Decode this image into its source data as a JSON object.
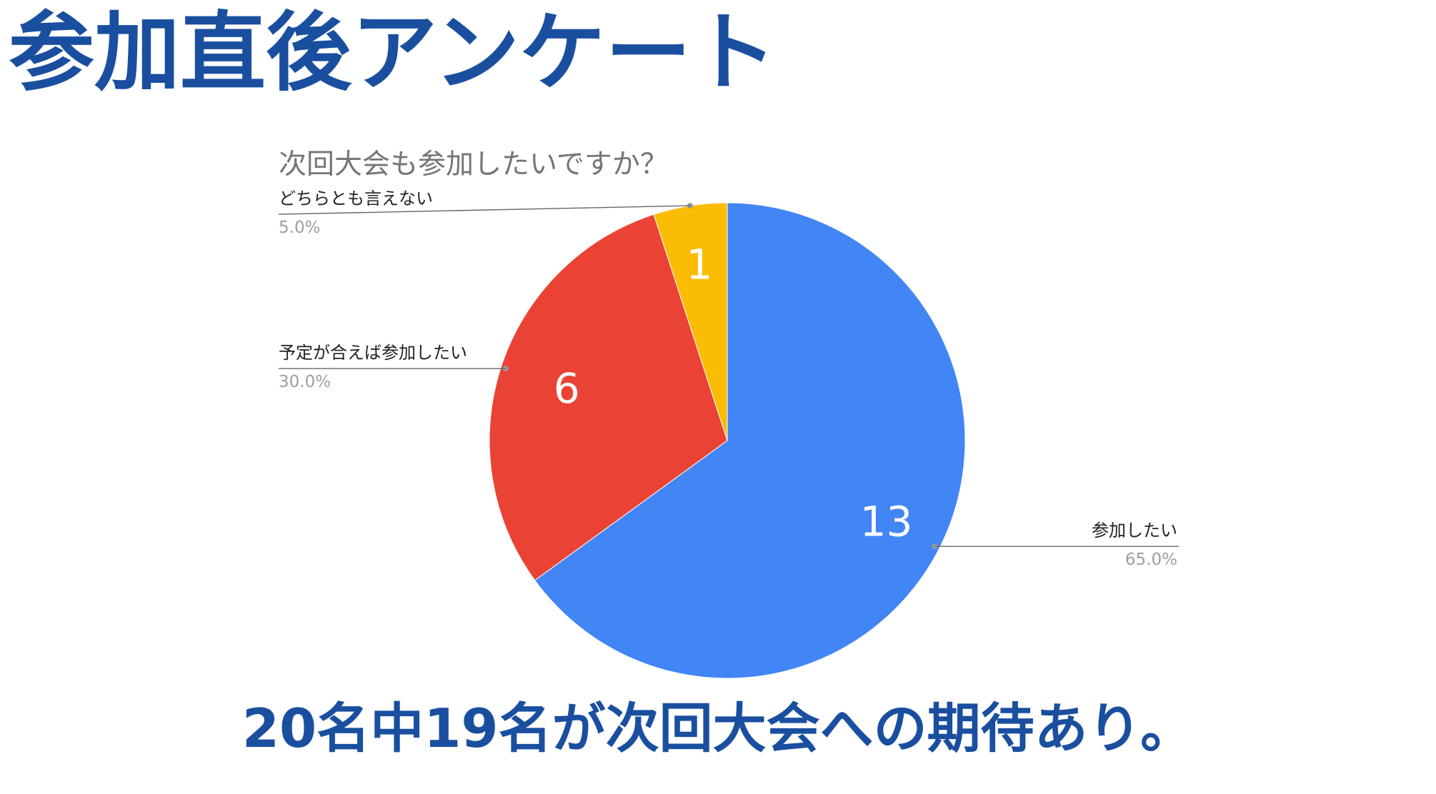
{
  "page_title": "参加直後アンケート",
  "summary": "20名中19名が次回大会への期待あり。",
  "chart_data": {
    "type": "pie",
    "title": "次回大会も参加したいですか？",
    "slices": [
      {
        "label": "参加したい",
        "value": 13,
        "percent_label": "65.0%",
        "color": "#4285f4"
      },
      {
        "label": "予定が合えば参加したい",
        "value": 6,
        "percent_label": "30.0%",
        "color": "#ea4335"
      },
      {
        "label": "どちらとも言えない",
        "value": 1,
        "percent_label": "5.0%",
        "color": "#fbbc04"
      }
    ],
    "data_labels": "values",
    "legend": "callouts"
  }
}
